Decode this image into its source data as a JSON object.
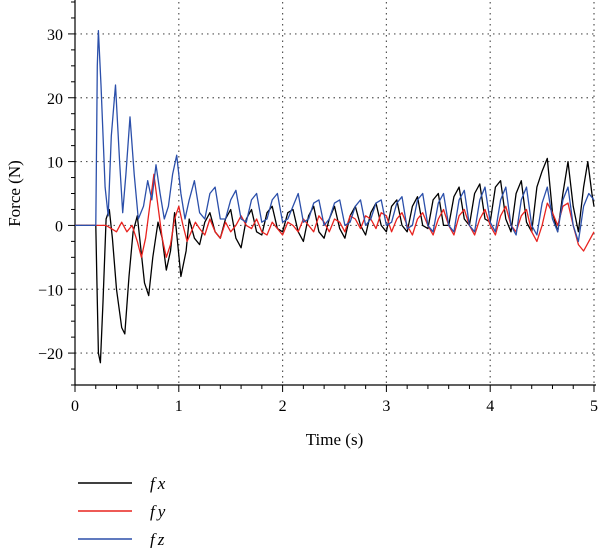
{
  "chart_data": {
    "type": "line",
    "title": "",
    "xlabel": "Time (s)",
    "ylabel": "Force (N)",
    "xlim": [
      0,
      5
    ],
    "ylim": [
      -25,
      35
    ],
    "x_ticks": [
      0,
      1,
      2,
      3,
      4,
      5
    ],
    "x_tick_labels": [
      "0",
      "1",
      "2",
      "3",
      "4",
      "5"
    ],
    "y_ticks": [
      -20,
      -10,
      0,
      10,
      20,
      30
    ],
    "y_tick_labels": [
      "−20",
      "−10",
      "0",
      "10",
      "20",
      "30"
    ],
    "grid": "dotted, at major ticks",
    "legend_position": "bottom-left, below plot",
    "series": [
      {
        "name": "fx",
        "color": "#000000",
        "points": [
          [
            0,
            0
          ],
          [
            0.2,
            0
          ],
          [
            0.21,
            -8
          ],
          [
            0.225,
            -20
          ],
          [
            0.245,
            -21.5
          ],
          [
            0.27,
            -12
          ],
          [
            0.3,
            1
          ],
          [
            0.33,
            2.5
          ],
          [
            0.36,
            -2
          ],
          [
            0.4,
            -10
          ],
          [
            0.45,
            -16
          ],
          [
            0.48,
            -17
          ],
          [
            0.52,
            -8
          ],
          [
            0.56,
            -1
          ],
          [
            0.6,
            1.5
          ],
          [
            0.63,
            -3
          ],
          [
            0.67,
            -9
          ],
          [
            0.71,
            -11
          ],
          [
            0.75,
            -5
          ],
          [
            0.8,
            0.5
          ],
          [
            0.84,
            -2
          ],
          [
            0.88,
            -7
          ],
          [
            0.92,
            -4
          ],
          [
            0.96,
            2
          ],
          [
            0.99,
            -3
          ],
          [
            1.02,
            -8
          ],
          [
            1.07,
            -4
          ],
          [
            1.1,
            1
          ],
          [
            1.15,
            -2
          ],
          [
            1.2,
            -3
          ],
          [
            1.25,
            0.5
          ],
          [
            1.3,
            2
          ],
          [
            1.35,
            -1
          ],
          [
            1.4,
            -2
          ],
          [
            1.45,
            1
          ],
          [
            1.5,
            2.5
          ],
          [
            1.55,
            -2
          ],
          [
            1.6,
            -3.5
          ],
          [
            1.65,
            1
          ],
          [
            1.7,
            2.5
          ],
          [
            1.75,
            -1
          ],
          [
            1.8,
            -1.5
          ],
          [
            1.85,
            2
          ],
          [
            1.9,
            3
          ],
          [
            1.95,
            -0.5
          ],
          [
            2.0,
            -1
          ],
          [
            2.05,
            2
          ],
          [
            2.1,
            2.5
          ],
          [
            2.15,
            -1
          ],
          [
            2.2,
            -2.5
          ],
          [
            2.25,
            1.5
          ],
          [
            2.3,
            3
          ],
          [
            2.35,
            -1
          ],
          [
            2.4,
            -2
          ],
          [
            2.45,
            1
          ],
          [
            2.5,
            3
          ],
          [
            2.55,
            -0.5
          ],
          [
            2.6,
            -2
          ],
          [
            2.65,
            1.5
          ],
          [
            2.7,
            3
          ],
          [
            2.75,
            0
          ],
          [
            2.8,
            -1.5
          ],
          [
            2.85,
            2
          ],
          [
            2.9,
            3.5
          ],
          [
            2.95,
            0
          ],
          [
            3.0,
            -1
          ],
          [
            3.05,
            3
          ],
          [
            3.1,
            4
          ],
          [
            3.15,
            0
          ],
          [
            3.2,
            -1
          ],
          [
            3.25,
            3
          ],
          [
            3.3,
            4.5
          ],
          [
            3.35,
            0
          ],
          [
            3.4,
            -0.5
          ],
          [
            3.45,
            4
          ],
          [
            3.5,
            5
          ],
          [
            3.55,
            0
          ],
          [
            3.6,
            0
          ],
          [
            3.65,
            4.5
          ],
          [
            3.7,
            6
          ],
          [
            3.75,
            1
          ],
          [
            3.8,
            0
          ],
          [
            3.85,
            5
          ],
          [
            3.9,
            6.5
          ],
          [
            3.95,
            1
          ],
          [
            4.0,
            0.5
          ],
          [
            4.05,
            6
          ],
          [
            4.1,
            7
          ],
          [
            4.15,
            1
          ],
          [
            4.2,
            -1
          ],
          [
            4.25,
            5
          ],
          [
            4.3,
            7
          ],
          [
            4.35,
            0.5
          ],
          [
            4.4,
            -1
          ],
          [
            4.45,
            6
          ],
          [
            4.5,
            8.5
          ],
          [
            4.55,
            10.5
          ],
          [
            4.6,
            2
          ],
          [
            4.65,
            -1
          ],
          [
            4.7,
            5
          ],
          [
            4.75,
            10
          ],
          [
            4.8,
            3
          ],
          [
            4.85,
            -1
          ],
          [
            4.9,
            6
          ],
          [
            4.94,
            10
          ],
          [
            4.98,
            5
          ],
          [
            5.0,
            3
          ]
        ]
      },
      {
        "name": "fy",
        "color": "#e8231f",
        "points": [
          [
            0,
            0
          ],
          [
            0.3,
            0
          ],
          [
            0.35,
            -0.5
          ],
          [
            0.4,
            -1
          ],
          [
            0.45,
            0.5
          ],
          [
            0.5,
            -1
          ],
          [
            0.55,
            0
          ],
          [
            0.6,
            -2.5
          ],
          [
            0.64,
            -5
          ],
          [
            0.68,
            -2
          ],
          [
            0.72,
            3
          ],
          [
            0.76,
            8
          ],
          [
            0.8,
            3
          ],
          [
            0.84,
            -2
          ],
          [
            0.88,
            -5
          ],
          [
            0.92,
            -3
          ],
          [
            0.96,
            1
          ],
          [
            1.0,
            3
          ],
          [
            1.04,
            0
          ],
          [
            1.08,
            -2.5
          ],
          [
            1.12,
            -1
          ],
          [
            1.16,
            0.5
          ],
          [
            1.2,
            -0.5
          ],
          [
            1.25,
            -1.5
          ],
          [
            1.3,
            1
          ],
          [
            1.35,
            -1
          ],
          [
            1.4,
            -2
          ],
          [
            1.45,
            0.5
          ],
          [
            1.5,
            -1
          ],
          [
            1.55,
            0
          ],
          [
            1.6,
            1.5
          ],
          [
            1.65,
            0
          ],
          [
            1.7,
            -0.5
          ],
          [
            1.75,
            1
          ],
          [
            1.8,
            -1
          ],
          [
            1.85,
            -1.5
          ],
          [
            1.9,
            0.5
          ],
          [
            1.95,
            -0.5
          ],
          [
            2.0,
            -1.5
          ],
          [
            2.05,
            0.5
          ],
          [
            2.1,
            0
          ],
          [
            2.15,
            -1
          ],
          [
            2.2,
            1
          ],
          [
            2.25,
            0
          ],
          [
            2.3,
            -1
          ],
          [
            2.35,
            1.5
          ],
          [
            2.4,
            0.5
          ],
          [
            2.45,
            -1
          ],
          [
            2.5,
            1
          ],
          [
            2.55,
            0.5
          ],
          [
            2.6,
            -1
          ],
          [
            2.65,
            1.5
          ],
          [
            2.7,
            1
          ],
          [
            2.75,
            -0.5
          ],
          [
            2.8,
            1.5
          ],
          [
            2.85,
            1
          ],
          [
            2.9,
            -0.5
          ],
          [
            2.95,
            2
          ],
          [
            3.0,
            1.5
          ],
          [
            3.05,
            -1
          ],
          [
            3.1,
            1
          ],
          [
            3.15,
            2
          ],
          [
            3.2,
            0
          ],
          [
            3.25,
            -1.5
          ],
          [
            3.3,
            1
          ],
          [
            3.35,
            2
          ],
          [
            3.4,
            0
          ],
          [
            3.45,
            -1.5
          ],
          [
            3.5,
            1
          ],
          [
            3.55,
            2.5
          ],
          [
            3.6,
            0
          ],
          [
            3.65,
            -1.5
          ],
          [
            3.7,
            1.5
          ],
          [
            3.75,
            2.5
          ],
          [
            3.8,
            0
          ],
          [
            3.85,
            -1.5
          ],
          [
            3.9,
            1
          ],
          [
            3.95,
            2.5
          ],
          [
            4.0,
            0
          ],
          [
            4.05,
            -1.5
          ],
          [
            4.1,
            1.5
          ],
          [
            4.15,
            3
          ],
          [
            4.2,
            0
          ],
          [
            4.25,
            -1
          ],
          [
            4.3,
            1.5
          ],
          [
            4.35,
            2.5
          ],
          [
            4.4,
            -1
          ],
          [
            4.45,
            -2.5
          ],
          [
            4.5,
            0
          ],
          [
            4.55,
            3.5
          ],
          [
            4.6,
            2
          ],
          [
            4.65,
            0
          ],
          [
            4.7,
            3
          ],
          [
            4.75,
            3.5
          ],
          [
            4.8,
            0
          ],
          [
            4.85,
            -3
          ],
          [
            4.9,
            -4
          ],
          [
            4.95,
            -2.5
          ],
          [
            5.0,
            -1
          ]
        ]
      },
      {
        "name": "fz",
        "color": "#2b4faa",
        "points": [
          [
            0,
            0
          ],
          [
            0.2,
            0
          ],
          [
            0.215,
            25
          ],
          [
            0.225,
            30.5
          ],
          [
            0.25,
            22
          ],
          [
            0.29,
            6
          ],
          [
            0.32,
            1.5
          ],
          [
            0.35,
            14
          ],
          [
            0.39,
            22
          ],
          [
            0.43,
            10
          ],
          [
            0.46,
            2
          ],
          [
            0.49,
            8
          ],
          [
            0.53,
            17
          ],
          [
            0.57,
            8
          ],
          [
            0.61,
            1
          ],
          [
            0.66,
            3
          ],
          [
            0.7,
            7
          ],
          [
            0.74,
            4
          ],
          [
            0.78,
            9.5
          ],
          [
            0.82,
            5
          ],
          [
            0.86,
            1
          ],
          [
            0.9,
            3
          ],
          [
            0.94,
            8
          ],
          [
            0.98,
            11
          ],
          [
            1.02,
            5
          ],
          [
            1.06,
            1
          ],
          [
            1.1,
            4
          ],
          [
            1.15,
            7
          ],
          [
            1.2,
            2
          ],
          [
            1.25,
            1
          ],
          [
            1.3,
            5
          ],
          [
            1.35,
            6
          ],
          [
            1.4,
            1
          ],
          [
            1.45,
            1
          ],
          [
            1.5,
            4
          ],
          [
            1.55,
            5.5
          ],
          [
            1.6,
            1
          ],
          [
            1.65,
            0.5
          ],
          [
            1.7,
            4
          ],
          [
            1.75,
            5
          ],
          [
            1.8,
            0.5
          ],
          [
            1.85,
            1
          ],
          [
            1.9,
            4
          ],
          [
            1.95,
            5
          ],
          [
            2.0,
            0.5
          ],
          [
            2.05,
            1
          ],
          [
            2.1,
            3
          ],
          [
            2.15,
            5
          ],
          [
            2.2,
            0.5
          ],
          [
            2.25,
            1
          ],
          [
            2.3,
            3.5
          ],
          [
            2.35,
            4
          ],
          [
            2.4,
            0
          ],
          [
            2.45,
            1
          ],
          [
            2.5,
            3.5
          ],
          [
            2.55,
            4
          ],
          [
            2.6,
            0
          ],
          [
            2.65,
            0.5
          ],
          [
            2.7,
            3
          ],
          [
            2.75,
            4
          ],
          [
            2.8,
            0
          ],
          [
            2.85,
            1
          ],
          [
            2.9,
            3.5
          ],
          [
            2.95,
            4
          ],
          [
            3.0,
            0
          ],
          [
            3.05,
            0.5
          ],
          [
            3.1,
            3.5
          ],
          [
            3.15,
            4.5
          ],
          [
            3.2,
            -0.5
          ],
          [
            3.25,
            0
          ],
          [
            3.3,
            4
          ],
          [
            3.35,
            5
          ],
          [
            3.4,
            0
          ],
          [
            3.45,
            -1
          ],
          [
            3.5,
            3.5
          ],
          [
            3.55,
            5
          ],
          [
            3.6,
            0
          ],
          [
            3.65,
            -1
          ],
          [
            3.7,
            4
          ],
          [
            3.75,
            5.5
          ],
          [
            3.8,
            0
          ],
          [
            3.85,
            -1
          ],
          [
            3.9,
            4
          ],
          [
            3.95,
            6
          ],
          [
            4.0,
            0.5
          ],
          [
            4.05,
            -1
          ],
          [
            4.1,
            4
          ],
          [
            4.15,
            6
          ],
          [
            4.2,
            0
          ],
          [
            4.25,
            -1.5
          ],
          [
            4.3,
            4
          ],
          [
            4.35,
            6
          ],
          [
            4.4,
            0
          ],
          [
            4.45,
            -1.5
          ],
          [
            4.5,
            3.5
          ],
          [
            4.55,
            6
          ],
          [
            4.6,
            1
          ],
          [
            4.65,
            -1
          ],
          [
            4.7,
            4
          ],
          [
            4.75,
            6
          ],
          [
            4.8,
            0
          ],
          [
            4.85,
            -2.5
          ],
          [
            4.9,
            3
          ],
          [
            4.95,
            5
          ],
          [
            5.0,
            4
          ]
        ]
      }
    ]
  }
}
